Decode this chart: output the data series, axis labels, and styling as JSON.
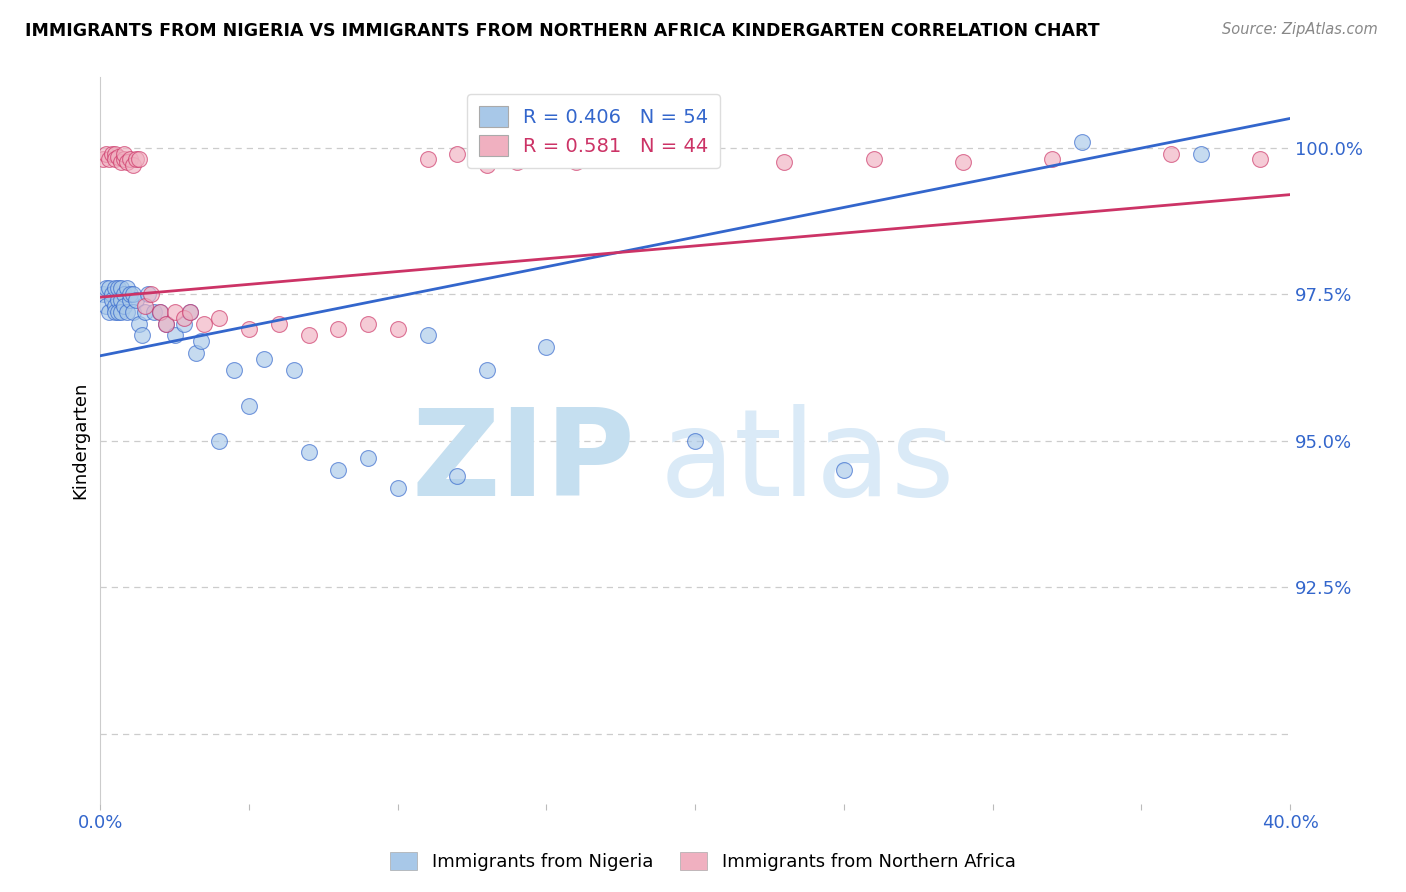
{
  "title": "IMMIGRANTS FROM NIGERIA VS IMMIGRANTS FROM NORTHERN AFRICA KINDERGARTEN CORRELATION CHART",
  "source": "Source: ZipAtlas.com",
  "ylabel": "Kindergarten",
  "legend_label1": "Immigrants from Nigeria",
  "legend_label2": "Immigrants from Northern Africa",
  "r1": 0.406,
  "n1": 54,
  "r2": 0.581,
  "n2": 44,
  "color1": "#a8c8e8",
  "color2": "#f0b0c0",
  "trendline1_color": "#3366cc",
  "trendline2_color": "#cc3366",
  "xlim": [
    0.0,
    0.4
  ],
  "ylim": [
    0.888,
    1.012
  ],
  "xticks": [
    0.0,
    0.05,
    0.1,
    0.15,
    0.2,
    0.25,
    0.3,
    0.35,
    0.4
  ],
  "yticks": [
    0.9,
    0.925,
    0.95,
    0.975,
    1.0
  ],
  "watermark_zip": "ZIP",
  "watermark_atlas": "atlas",
  "watermark_color": "#daeaf7",
  "background_color": "#ffffff",
  "scatter1_x": [
    0.001,
    0.002,
    0.002,
    0.003,
    0.003,
    0.004,
    0.004,
    0.005,
    0.005,
    0.005,
    0.006,
    0.006,
    0.006,
    0.007,
    0.007,
    0.007,
    0.008,
    0.008,
    0.009,
    0.009,
    0.01,
    0.01,
    0.011,
    0.011,
    0.012,
    0.013,
    0.014,
    0.015,
    0.016,
    0.018,
    0.02,
    0.022,
    0.025,
    0.028,
    0.03,
    0.032,
    0.034,
    0.04,
    0.045,
    0.05,
    0.055,
    0.065,
    0.07,
    0.08,
    0.09,
    0.1,
    0.11,
    0.12,
    0.13,
    0.15,
    0.2,
    0.25,
    0.33,
    0.37
  ],
  "scatter1_y": [
    0.975,
    0.973,
    0.976,
    0.972,
    0.976,
    0.975,
    0.974,
    0.973,
    0.976,
    0.972,
    0.974,
    0.976,
    0.972,
    0.976,
    0.974,
    0.972,
    0.975,
    0.973,
    0.976,
    0.972,
    0.974,
    0.975,
    0.972,
    0.975,
    0.974,
    0.97,
    0.968,
    0.972,
    0.975,
    0.972,
    0.972,
    0.97,
    0.968,
    0.97,
    0.972,
    0.965,
    0.967,
    0.95,
    0.962,
    0.956,
    0.964,
    0.962,
    0.948,
    0.945,
    0.947,
    0.942,
    0.968,
    0.944,
    0.962,
    0.966,
    0.95,
    0.945,
    1.001,
    0.999
  ],
  "scatter2_x": [
    0.001,
    0.002,
    0.003,
    0.004,
    0.005,
    0.005,
    0.006,
    0.007,
    0.008,
    0.008,
    0.009,
    0.01,
    0.011,
    0.012,
    0.013,
    0.015,
    0.017,
    0.02,
    0.022,
    0.025,
    0.028,
    0.03,
    0.035,
    0.04,
    0.05,
    0.06,
    0.07,
    0.08,
    0.09,
    0.1,
    0.11,
    0.12,
    0.13,
    0.14,
    0.15,
    0.16,
    0.17,
    0.2,
    0.23,
    0.26,
    0.29,
    0.32,
    0.36,
    0.39
  ],
  "scatter2_y": [
    0.998,
    0.999,
    0.998,
    0.999,
    0.999,
    0.998,
    0.9985,
    0.9975,
    0.998,
    0.999,
    0.9975,
    0.998,
    0.997,
    0.998,
    0.998,
    0.973,
    0.975,
    0.972,
    0.97,
    0.972,
    0.971,
    0.972,
    0.97,
    0.971,
    0.969,
    0.97,
    0.968,
    0.969,
    0.97,
    0.969,
    0.998,
    0.999,
    0.997,
    0.9975,
    0.998,
    0.9975,
    0.998,
    0.998,
    0.9975,
    0.998,
    0.9975,
    0.998,
    0.999,
    0.998
  ]
}
